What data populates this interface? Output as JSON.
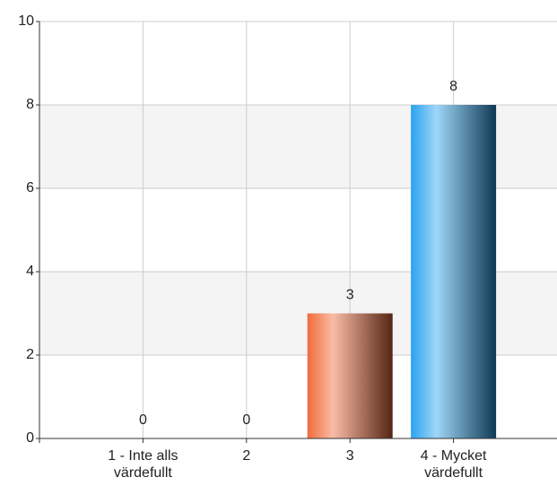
{
  "chart_data": {
    "type": "bar",
    "categories": [
      "1 - Inte alls värdefullt",
      "2",
      "3",
      "4 - Mycket värdefullt"
    ],
    "values": [
      0,
      0,
      3,
      8
    ],
    "colors": [
      "#7a9cc6",
      "#8fbf6a",
      "#f26b3a",
      "#2aa3f0"
    ],
    "ylim": [
      0,
      10
    ],
    "yticks": [
      0,
      2,
      4,
      6,
      8,
      10
    ],
    "grid": true
  }
}
